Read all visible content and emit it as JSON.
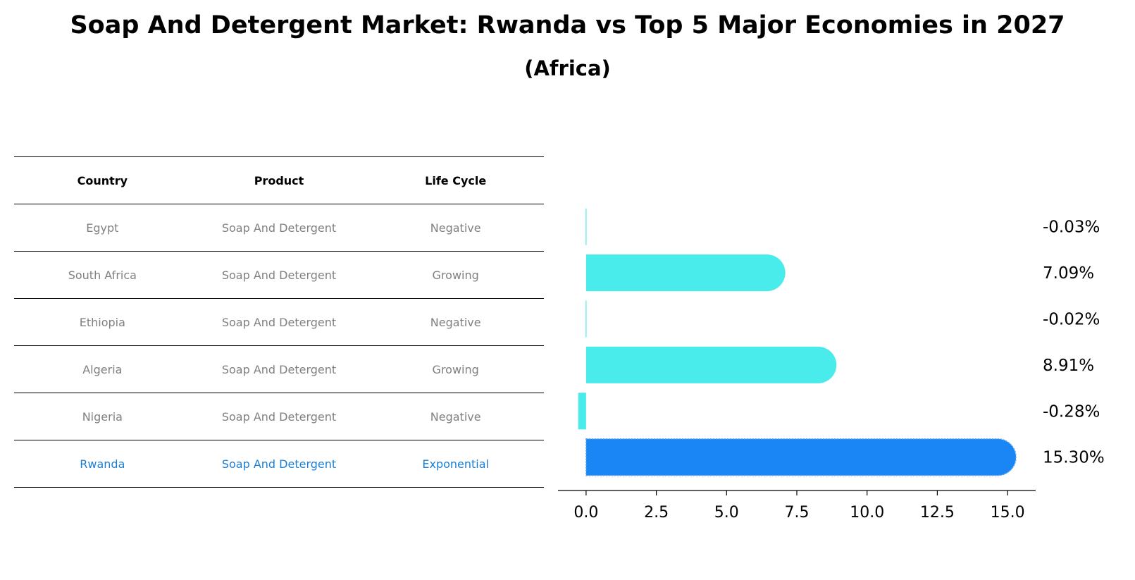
{
  "title": "Soap And Detergent Market: Rwanda vs Top 5 Major Economies in 2027",
  "subtitle": "(Africa)",
  "table": {
    "headers": [
      "Country",
      "Product",
      "Life Cycle"
    ],
    "rows": [
      {
        "country": "Egypt",
        "product": "Soap And Detergent",
        "life_cycle": "Negative"
      },
      {
        "country": "South Africa",
        "product": "Soap And Detergent",
        "life_cycle": "Growing"
      },
      {
        "country": "Ethiopia",
        "product": "Soap And Detergent",
        "life_cycle": "Negative"
      },
      {
        "country": "Algeria",
        "product": "Soap And Detergent",
        "life_cycle": "Growing"
      },
      {
        "country": "Nigeria",
        "product": "Soap And Detergent",
        "life_cycle": "Negative"
      },
      {
        "country": "Rwanda",
        "product": "Soap And Detergent",
        "life_cycle": "Exponential"
      }
    ]
  },
  "chart_data": {
    "type": "bar",
    "orientation": "horizontal",
    "categories": [
      "Egypt",
      "South Africa",
      "Ethiopia",
      "Algeria",
      "Nigeria",
      "Rwanda"
    ],
    "values": [
      -0.03,
      7.09,
      -0.02,
      8.91,
      -0.28,
      15.3
    ],
    "value_labels": [
      "-0.03%",
      "7.09%",
      "-0.02%",
      "8.91%",
      "-0.28%",
      "15.30%"
    ],
    "highlight": "Rwanda",
    "xlim": [
      -1.0,
      16.0
    ],
    "xticks": [
      0.0,
      2.5,
      5.0,
      7.5,
      10.0,
      12.5,
      15.0
    ],
    "xtick_labels": [
      "0.0",
      "2.5",
      "5.0",
      "7.5",
      "10.0",
      "12.5",
      "15.0"
    ],
    "colors": {
      "default": "#4aeceb",
      "highlight": "#1a85f5"
    }
  }
}
